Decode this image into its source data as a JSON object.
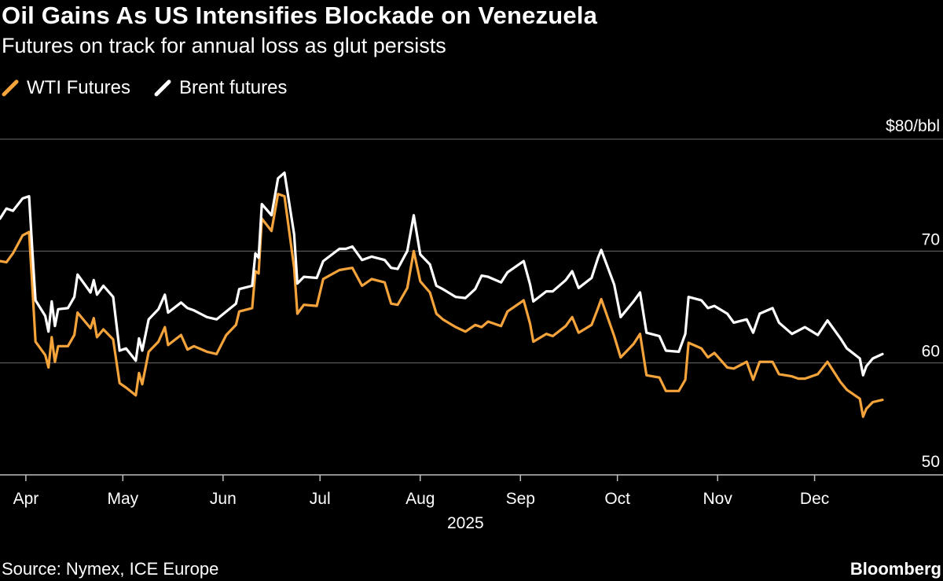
{
  "title": "Oil Gains As US Intensifies Blockade on Venezuela",
  "subtitle": "Futures on track for annual loss as glut persists",
  "source": "Source: Nymex, ICE Europe",
  "brand": "Bloomberg",
  "legend": [
    {
      "name": "WTI Futures",
      "color": "#f5a33b",
      "icon": "diagonal-line-icon"
    },
    {
      "name": "Brent futures",
      "color": "#ffffff",
      "icon": "diagonal-line-icon"
    }
  ],
  "chart_data": {
    "type": "line",
    "ylabel": "",
    "y_unit_label": "$80/bbl",
    "ylim": [
      50,
      80
    ],
    "yticks": [
      {
        "value": 80,
        "label": "$80/bbl"
      },
      {
        "value": 70,
        "label": "70"
      },
      {
        "value": 60,
        "label": "60"
      },
      {
        "value": 50,
        "label": "50"
      }
    ],
    "xlim": [
      "2025-03-24",
      "2025-12-31"
    ],
    "xticks": [
      {
        "date": "2025-04-01",
        "label": "Apr"
      },
      {
        "date": "2025-05-01",
        "label": "May"
      },
      {
        "date": "2025-06-01",
        "label": "Jun"
      },
      {
        "date": "2025-07-01",
        "label": "Jul"
      },
      {
        "date": "2025-08-01",
        "label": "Aug"
      },
      {
        "date": "2025-09-01",
        "label": "Sep"
      },
      {
        "date": "2025-10-01",
        "label": "Oct"
      },
      {
        "date": "2025-11-01",
        "label": "Nov"
      },
      {
        "date": "2025-12-01",
        "label": "Dec"
      }
    ],
    "year_label": "2025",
    "grid": true,
    "series": [
      {
        "name": "WTI Futures",
        "color": "#f5a33b",
        "points": [
          [
            "2025-03-24",
            69.1
          ],
          [
            "2025-03-26",
            69.0
          ],
          [
            "2025-03-28",
            69.8
          ],
          [
            "2025-03-31",
            71.4
          ],
          [
            "2025-04-02",
            71.7
          ],
          [
            "2025-04-03",
            66.9
          ],
          [
            "2025-04-04",
            61.9
          ],
          [
            "2025-04-07",
            60.7
          ],
          [
            "2025-04-08",
            59.6
          ],
          [
            "2025-04-09",
            62.3
          ],
          [
            "2025-04-10",
            60.1
          ],
          [
            "2025-04-11",
            61.5
          ],
          [
            "2025-04-14",
            61.5
          ],
          [
            "2025-04-16",
            62.5
          ],
          [
            "2025-04-17",
            64.5
          ],
          [
            "2025-04-21",
            63.1
          ],
          [
            "2025-04-22",
            64.0
          ],
          [
            "2025-04-23",
            62.3
          ],
          [
            "2025-04-25",
            63.0
          ],
          [
            "2025-04-28",
            62.1
          ],
          [
            "2025-04-30",
            58.2
          ],
          [
            "2025-05-02",
            57.8
          ],
          [
            "2025-05-05",
            57.1
          ],
          [
            "2025-05-06",
            59.1
          ],
          [
            "2025-05-07",
            58.1
          ],
          [
            "2025-05-09",
            61.0
          ],
          [
            "2025-05-12",
            61.9
          ],
          [
            "2025-05-14",
            63.2
          ],
          [
            "2025-05-15",
            61.6
          ],
          [
            "2025-05-19",
            62.5
          ],
          [
            "2025-05-21",
            61.2
          ],
          [
            "2025-05-23",
            61.5
          ],
          [
            "2025-05-27",
            61.0
          ],
          [
            "2025-05-30",
            60.8
          ],
          [
            "2025-06-02",
            62.5
          ],
          [
            "2025-06-05",
            63.4
          ],
          [
            "2025-06-06",
            64.6
          ],
          [
            "2025-06-10",
            64.9
          ],
          [
            "2025-06-11",
            68.2
          ],
          [
            "2025-06-12",
            68.0
          ],
          [
            "2025-06-13",
            72.9
          ],
          [
            "2025-06-16",
            71.8
          ],
          [
            "2025-06-18",
            75.1
          ],
          [
            "2025-06-20",
            74.9
          ],
          [
            "2025-06-23",
            68.5
          ],
          [
            "2025-06-24",
            64.4
          ],
          [
            "2025-06-26",
            65.2
          ],
          [
            "2025-06-30",
            65.1
          ],
          [
            "2025-07-02",
            67.5
          ],
          [
            "2025-07-07",
            68.3
          ],
          [
            "2025-07-09",
            68.4
          ],
          [
            "2025-07-11",
            68.5
          ],
          [
            "2025-07-14",
            66.9
          ],
          [
            "2025-07-17",
            67.5
          ],
          [
            "2025-07-21",
            67.2
          ],
          [
            "2025-07-23",
            65.3
          ],
          [
            "2025-07-25",
            65.2
          ],
          [
            "2025-07-28",
            66.7
          ],
          [
            "2025-07-30",
            70.0
          ],
          [
            "2025-08-01",
            67.3
          ],
          [
            "2025-08-04",
            66.3
          ],
          [
            "2025-08-06",
            64.4
          ],
          [
            "2025-08-08",
            63.9
          ],
          [
            "2025-08-12",
            63.2
          ],
          [
            "2025-08-15",
            62.8
          ],
          [
            "2025-08-18",
            63.4
          ],
          [
            "2025-08-20",
            63.2
          ],
          [
            "2025-08-22",
            63.7
          ],
          [
            "2025-08-26",
            63.3
          ],
          [
            "2025-08-28",
            64.6
          ],
          [
            "2025-09-02",
            65.6
          ],
          [
            "2025-09-04",
            63.5
          ],
          [
            "2025-09-05",
            61.9
          ],
          [
            "2025-09-09",
            62.6
          ],
          [
            "2025-09-11",
            62.4
          ],
          [
            "2025-09-15",
            63.3
          ],
          [
            "2025-09-17",
            64.1
          ],
          [
            "2025-09-19",
            62.7
          ],
          [
            "2025-09-23",
            63.4
          ],
          [
            "2025-09-25",
            64.9
          ],
          [
            "2025-09-26",
            65.7
          ],
          [
            "2025-09-30",
            62.4
          ],
          [
            "2025-10-02",
            60.5
          ],
          [
            "2025-10-06",
            61.7
          ],
          [
            "2025-10-08",
            62.6
          ],
          [
            "2025-10-10",
            58.9
          ],
          [
            "2025-10-14",
            58.7
          ],
          [
            "2025-10-16",
            57.5
          ],
          [
            "2025-10-20",
            57.5
          ],
          [
            "2025-10-22",
            58.5
          ],
          [
            "2025-10-23",
            61.8
          ],
          [
            "2025-10-27",
            61.3
          ],
          [
            "2025-10-29",
            60.5
          ],
          [
            "2025-10-31",
            60.9
          ],
          [
            "2025-11-04",
            59.6
          ],
          [
            "2025-11-06",
            59.5
          ],
          [
            "2025-11-10",
            60.1
          ],
          [
            "2025-11-12",
            58.5
          ],
          [
            "2025-11-14",
            60.1
          ],
          [
            "2025-11-18",
            60.1
          ],
          [
            "2025-11-20",
            59.0
          ],
          [
            "2025-11-24",
            58.8
          ],
          [
            "2025-11-26",
            58.6
          ],
          [
            "2025-11-28",
            58.6
          ],
          [
            "2025-12-02",
            59.0
          ],
          [
            "2025-12-05",
            60.1
          ],
          [
            "2025-12-09",
            58.3
          ],
          [
            "2025-12-11",
            57.6
          ],
          [
            "2025-12-15",
            56.8
          ],
          [
            "2025-12-16",
            55.2
          ],
          [
            "2025-12-17",
            55.9
          ],
          [
            "2025-12-19",
            56.5
          ],
          [
            "2025-12-22",
            56.7
          ]
        ]
      },
      {
        "name": "Brent futures",
        "color": "#ffffff",
        "points": [
          [
            "2025-03-24",
            72.9
          ],
          [
            "2025-03-26",
            73.8
          ],
          [
            "2025-03-28",
            73.6
          ],
          [
            "2025-03-31",
            74.7
          ],
          [
            "2025-04-02",
            74.9
          ],
          [
            "2025-04-03",
            70.1
          ],
          [
            "2025-04-04",
            65.6
          ],
          [
            "2025-04-07",
            64.2
          ],
          [
            "2025-04-08",
            62.8
          ],
          [
            "2025-04-09",
            65.5
          ],
          [
            "2025-04-10",
            63.3
          ],
          [
            "2025-04-11",
            64.8
          ],
          [
            "2025-04-14",
            64.9
          ],
          [
            "2025-04-16",
            65.9
          ],
          [
            "2025-04-17",
            67.9
          ],
          [
            "2025-04-21",
            66.3
          ],
          [
            "2025-04-22",
            67.4
          ],
          [
            "2025-04-23",
            66.1
          ],
          [
            "2025-04-25",
            66.9
          ],
          [
            "2025-04-28",
            65.9
          ],
          [
            "2025-04-30",
            61.1
          ],
          [
            "2025-05-02",
            61.3
          ],
          [
            "2025-05-05",
            60.2
          ],
          [
            "2025-05-06",
            62.2
          ],
          [
            "2025-05-07",
            61.1
          ],
          [
            "2025-05-09",
            63.9
          ],
          [
            "2025-05-12",
            64.8
          ],
          [
            "2025-05-14",
            66.1
          ],
          [
            "2025-05-15",
            64.5
          ],
          [
            "2025-05-19",
            65.4
          ],
          [
            "2025-05-21",
            64.9
          ],
          [
            "2025-05-23",
            64.7
          ],
          [
            "2025-05-27",
            64.1
          ],
          [
            "2025-05-30",
            63.9
          ],
          [
            "2025-06-02",
            64.6
          ],
          [
            "2025-06-05",
            65.3
          ],
          [
            "2025-06-06",
            66.6
          ],
          [
            "2025-06-10",
            66.9
          ],
          [
            "2025-06-11",
            69.8
          ],
          [
            "2025-06-12",
            69.4
          ],
          [
            "2025-06-13",
            74.2
          ],
          [
            "2025-06-16",
            73.2
          ],
          [
            "2025-06-18",
            76.5
          ],
          [
            "2025-06-20",
            77.0
          ],
          [
            "2025-06-23",
            71.5
          ],
          [
            "2025-06-24",
            67.1
          ],
          [
            "2025-06-26",
            67.7
          ],
          [
            "2025-06-30",
            67.6
          ],
          [
            "2025-07-02",
            69.1
          ],
          [
            "2025-07-07",
            70.2
          ],
          [
            "2025-07-09",
            70.2
          ],
          [
            "2025-07-11",
            70.4
          ],
          [
            "2025-07-14",
            69.2
          ],
          [
            "2025-07-17",
            69.5
          ],
          [
            "2025-07-21",
            69.2
          ],
          [
            "2025-07-23",
            68.5
          ],
          [
            "2025-07-25",
            68.4
          ],
          [
            "2025-07-28",
            70.0
          ],
          [
            "2025-07-30",
            73.2
          ],
          [
            "2025-08-01",
            69.7
          ],
          [
            "2025-08-04",
            68.8
          ],
          [
            "2025-08-06",
            66.9
          ],
          [
            "2025-08-08",
            66.6
          ],
          [
            "2025-08-12",
            65.9
          ],
          [
            "2025-08-15",
            65.8
          ],
          [
            "2025-08-18",
            66.6
          ],
          [
            "2025-08-20",
            67.8
          ],
          [
            "2025-08-22",
            67.7
          ],
          [
            "2025-08-26",
            67.2
          ],
          [
            "2025-08-28",
            68.1
          ],
          [
            "2025-09-02",
            69.1
          ],
          [
            "2025-09-04",
            67.0
          ],
          [
            "2025-09-05",
            65.5
          ],
          [
            "2025-09-09",
            66.4
          ],
          [
            "2025-09-11",
            66.4
          ],
          [
            "2025-09-15",
            67.4
          ],
          [
            "2025-09-17",
            68.2
          ],
          [
            "2025-09-19",
            66.7
          ],
          [
            "2025-09-23",
            67.6
          ],
          [
            "2025-09-25",
            69.4
          ],
          [
            "2025-09-26",
            70.1
          ],
          [
            "2025-09-30",
            67.0
          ],
          [
            "2025-10-02",
            64.1
          ],
          [
            "2025-10-06",
            65.5
          ],
          [
            "2025-10-08",
            66.3
          ],
          [
            "2025-10-10",
            62.7
          ],
          [
            "2025-10-14",
            62.4
          ],
          [
            "2025-10-16",
            61.1
          ],
          [
            "2025-10-20",
            61.0
          ],
          [
            "2025-10-22",
            62.6
          ],
          [
            "2025-10-23",
            65.9
          ],
          [
            "2025-10-27",
            65.6
          ],
          [
            "2025-10-29",
            64.9
          ],
          [
            "2025-10-31",
            65.1
          ],
          [
            "2025-11-04",
            64.4
          ],
          [
            "2025-11-06",
            63.6
          ],
          [
            "2025-11-10",
            63.9
          ],
          [
            "2025-11-12",
            62.7
          ],
          [
            "2025-11-14",
            64.4
          ],
          [
            "2025-11-18",
            64.9
          ],
          [
            "2025-11-20",
            63.6
          ],
          [
            "2025-11-24",
            62.6
          ],
          [
            "2025-11-26",
            62.9
          ],
          [
            "2025-11-28",
            63.2
          ],
          [
            "2025-12-02",
            62.5
          ],
          [
            "2025-12-05",
            63.8
          ],
          [
            "2025-12-09",
            62.2
          ],
          [
            "2025-12-11",
            61.3
          ],
          [
            "2025-12-15",
            60.4
          ],
          [
            "2025-12-16",
            58.9
          ],
          [
            "2025-12-17",
            59.7
          ],
          [
            "2025-12-19",
            60.4
          ],
          [
            "2025-12-22",
            60.8
          ]
        ]
      }
    ]
  }
}
